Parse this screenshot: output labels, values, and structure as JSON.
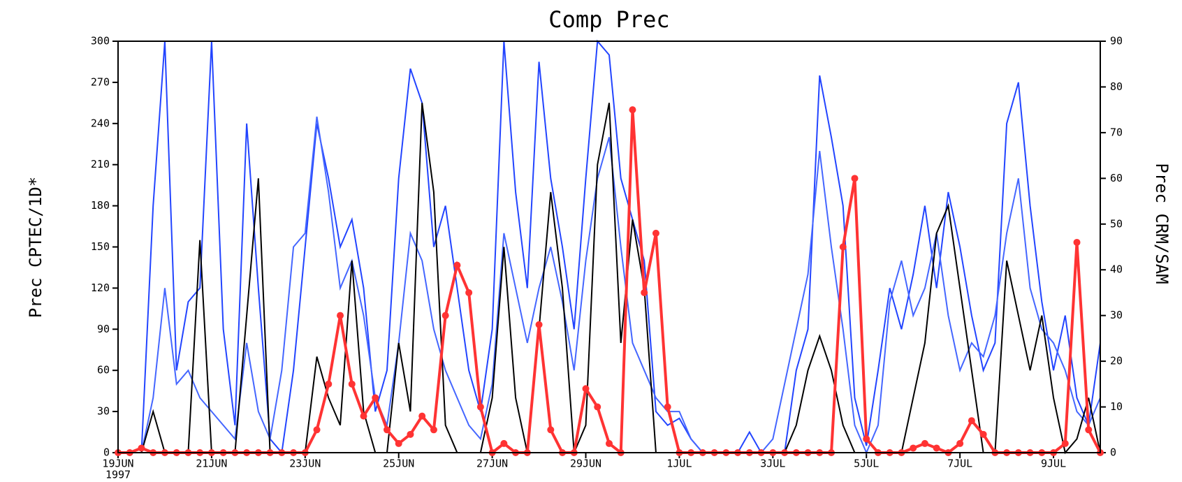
{
  "chart_data": {
    "type": "line",
    "title": "Comp Prec",
    "y_label": "Prec CPTEC/1D*",
    "y2_label": "Prec CRM/SAM",
    "year_label": "1997",
    "x": [
      0,
      0.25,
      0.5,
      0.75,
      1,
      1.25,
      1.5,
      1.75,
      2,
      2.25,
      2.5,
      2.75,
      3,
      3.25,
      3.5,
      3.75,
      4,
      4.25,
      4.5,
      4.75,
      5,
      5.25,
      5.5,
      5.75,
      6,
      6.25,
      6.5,
      6.75,
      7,
      7.25,
      7.5,
      7.75,
      8,
      8.25,
      8.5,
      8.75,
      9,
      9.25,
      9.5,
      9.75,
      10,
      10.25,
      10.5,
      10.75,
      11,
      11.25,
      11.5,
      11.75,
      12,
      12.25,
      12.5,
      12.75,
      13,
      13.25,
      13.5,
      13.75,
      14,
      14.25,
      14.5,
      14.75,
      15,
      15.25,
      15.5,
      15.75,
      16,
      16.25,
      16.5,
      16.75,
      17,
      17.25,
      17.5,
      17.75,
      18,
      18.25,
      18.5,
      18.75,
      19,
      19.25,
      19.5,
      19.75,
      20,
      20.25,
      20.5,
      20.75,
      21
    ],
    "xlim": [
      0,
      21
    ],
    "xticks": [
      {
        "value": 0,
        "label": "19JUN"
      },
      {
        "value": 2,
        "label": "21JUN"
      },
      {
        "value": 4,
        "label": "23JUN"
      },
      {
        "value": 6,
        "label": "25JUN"
      },
      {
        "value": 8,
        "label": "27JUN"
      },
      {
        "value": 10,
        "label": "29JUN"
      },
      {
        "value": 12,
        "label": "1JUL"
      },
      {
        "value": 14,
        "label": "3JUL"
      },
      {
        "value": 16,
        "label": "5JUL"
      },
      {
        "value": 18,
        "label": "7JUL"
      },
      {
        "value": 20,
        "label": "9JUL"
      }
    ],
    "ylim": [
      0,
      300
    ],
    "yticks": [
      0,
      30,
      60,
      90,
      120,
      150,
      180,
      210,
      240,
      270,
      300
    ],
    "y2lim": [
      0,
      90
    ],
    "y2ticks": [
      0,
      10,
      20,
      30,
      40,
      50,
      60,
      70,
      80,
      90
    ],
    "series": [
      {
        "color": "#2244ff",
        "values": [
          0,
          0,
          0,
          180,
          300,
          60,
          110,
          120,
          300,
          90,
          20,
          240,
          120,
          10,
          0,
          60,
          150,
          240,
          200,
          150,
          170,
          120,
          30,
          60,
          200,
          280,
          255,
          150,
          180,
          120,
          60,
          30,
          90,
          300,
          190,
          120,
          285,
          200,
          150,
          90,
          200,
          300,
          290,
          200,
          170,
          140,
          30,
          20,
          25,
          10,
          0,
          0,
          0,
          0,
          15,
          0,
          0,
          0,
          60,
          90,
          275,
          230,
          180,
          40,
          5,
          60,
          120,
          90,
          130,
          180,
          120,
          190,
          150,
          100,
          60,
          80,
          240,
          270,
          180,
          110,
          60,
          100,
          40,
          20,
          80
        ]
      },
      {
        "color": "#4466ff",
        "values": [
          0,
          0,
          0,
          40,
          120,
          50,
          60,
          40,
          30,
          20,
          10,
          80,
          30,
          10,
          60,
          150,
          160,
          245,
          190,
          120,
          140,
          100,
          40,
          20,
          80,
          160,
          140,
          90,
          60,
          40,
          20,
          10,
          50,
          160,
          120,
          80,
          120,
          150,
          110,
          60,
          140,
          200,
          230,
          150,
          80,
          60,
          40,
          30,
          30,
          10,
          0,
          0,
          0,
          0,
          0,
          0,
          10,
          50,
          90,
          130,
          220,
          150,
          90,
          20,
          0,
          20,
          110,
          140,
          100,
          120,
          160,
          100,
          60,
          80,
          70,
          100,
          160,
          200,
          120,
          90,
          80,
          60,
          30,
          20,
          40
        ]
      },
      {
        "color": "#000000",
        "values": [
          0,
          0,
          0,
          30,
          0,
          0,
          0,
          155,
          0,
          0,
          0,
          100,
          200,
          0,
          0,
          0,
          0,
          70,
          40,
          20,
          140,
          30,
          0,
          0,
          80,
          30,
          255,
          190,
          20,
          0,
          0,
          0,
          40,
          150,
          40,
          0,
          90,
          190,
          120,
          0,
          20,
          210,
          255,
          80,
          170,
          120,
          0,
          0,
          0,
          0,
          0,
          0,
          0,
          0,
          0,
          0,
          0,
          0,
          20,
          60,
          85,
          60,
          20,
          0,
          0,
          0,
          0,
          0,
          40,
          80,
          160,
          180,
          120,
          60,
          0,
          0,
          140,
          100,
          60,
          100,
          40,
          0,
          10,
          40,
          0
        ]
      },
      {
        "color": "#ff3333",
        "axis": "y2",
        "markers": true,
        "values": [
          0,
          0,
          1,
          0,
          0,
          0,
          0,
          0,
          0,
          0,
          0,
          0,
          0,
          0,
          0,
          0,
          0,
          5,
          15,
          30,
          15,
          8,
          12,
          5,
          2,
          4,
          8,
          5,
          30,
          41,
          35,
          10,
          0,
          2,
          0,
          0,
          28,
          5,
          0,
          0,
          14,
          10,
          2,
          0,
          75,
          35,
          48,
          10,
          0,
          0,
          0,
          0,
          0,
          0,
          0,
          0,
          0,
          0,
          0,
          0,
          0,
          0,
          45,
          60,
          3,
          0,
          0,
          0,
          1,
          2,
          1,
          0,
          2,
          7,
          4,
          0,
          0,
          0,
          0,
          0,
          0,
          2,
          46,
          5,
          0
        ]
      }
    ]
  }
}
